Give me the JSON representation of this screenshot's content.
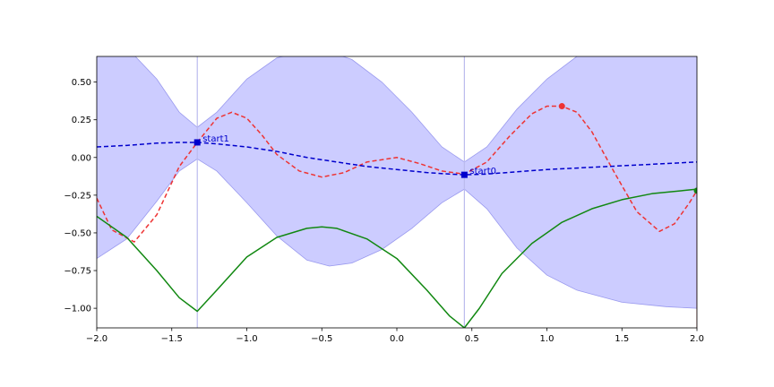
{
  "chart_data": {
    "type": "line",
    "title": "",
    "xlabel": "",
    "ylabel": "",
    "xlim": [
      -2.0,
      2.0
    ],
    "ylim": [
      -1.13,
      0.67
    ],
    "x_ticks": [
      {
        "value": -2.0,
        "label": "−2.0"
      },
      {
        "value": -1.5,
        "label": "−1.5"
      },
      {
        "value": -1.0,
        "label": "−1.0"
      },
      {
        "value": -0.5,
        "label": "−0.5"
      },
      {
        "value": 0.0,
        "label": "0.0"
      },
      {
        "value": 0.5,
        "label": "0.5"
      },
      {
        "value": 1.0,
        "label": "1.0"
      },
      {
        "value": 1.5,
        "label": "1.5"
      },
      {
        "value": 2.0,
        "label": "2.0"
      }
    ],
    "y_ticks": [
      {
        "value": 0.5,
        "label": "0.50"
      },
      {
        "value": 0.25,
        "label": "0.25"
      },
      {
        "value": 0.0,
        "label": "0.00"
      },
      {
        "value": -0.25,
        "label": "−0.25"
      },
      {
        "value": -0.5,
        "label": "−0.50"
      },
      {
        "value": -0.75,
        "label": "−0.75"
      },
      {
        "value": -1.0,
        "label": "−1.00"
      }
    ],
    "grid": false,
    "colors": {
      "band_fill": "#ccccff",
      "band_edge": "#9999ee",
      "target": "#ee3333",
      "mean": "#0000cc",
      "acquisition": "#118811",
      "sample_line": "#bbbbee"
    },
    "band": {
      "x": [
        -2.0,
        -1.8,
        -1.6,
        -1.45,
        -1.33,
        -1.2,
        -1.0,
        -0.8,
        -0.6,
        -0.45,
        -0.3,
        -0.1,
        0.1,
        0.3,
        0.45,
        0.6,
        0.8,
        1.0,
        1.2,
        1.5,
        1.8,
        2.0
      ],
      "upper": [
        0.82,
        0.73,
        0.52,
        0.3,
        0.2,
        0.3,
        0.52,
        0.66,
        0.71,
        0.7,
        0.65,
        0.5,
        0.3,
        0.07,
        -0.03,
        0.07,
        0.32,
        0.52,
        0.67,
        0.86,
        1.0,
        1.05
      ],
      "lower": [
        -0.67,
        -0.54,
        -0.29,
        -0.09,
        -0.01,
        -0.09,
        -0.3,
        -0.52,
        -0.68,
        -0.72,
        -0.7,
        -0.61,
        -0.47,
        -0.3,
        -0.21,
        -0.34,
        -0.6,
        -0.78,
        -0.88,
        -0.96,
        -0.99,
        -1.0
      ]
    },
    "series": [
      {
        "key": "target",
        "style": "dashed",
        "x": [
          -2.0,
          -1.9,
          -1.75,
          -1.6,
          -1.45,
          -1.33,
          -1.2,
          -1.1,
          -1.0,
          -0.9,
          -0.8,
          -0.65,
          -0.5,
          -0.35,
          -0.2,
          0.0,
          0.15,
          0.3,
          0.45,
          0.6,
          0.75,
          0.9,
          1.0,
          1.1,
          1.2,
          1.3,
          1.45,
          1.6,
          1.75,
          1.85,
          1.95,
          2.0
        ],
        "y": [
          -0.27,
          -0.48,
          -0.56,
          -0.38,
          -0.06,
          0.1,
          0.26,
          0.3,
          0.26,
          0.15,
          0.02,
          -0.09,
          -0.13,
          -0.1,
          -0.03,
          0.0,
          -0.04,
          -0.09,
          -0.11,
          -0.03,
          0.14,
          0.29,
          0.34,
          0.34,
          0.3,
          0.17,
          -0.1,
          -0.36,
          -0.49,
          -0.44,
          -0.3,
          -0.22
        ]
      },
      {
        "key": "mean",
        "style": "dashed",
        "x": [
          -2.0,
          -1.8,
          -1.6,
          -1.45,
          -1.33,
          -1.2,
          -1.0,
          -0.8,
          -0.6,
          -0.4,
          -0.2,
          0.0,
          0.2,
          0.35,
          0.45,
          0.6,
          0.8,
          1.0,
          1.2,
          1.4,
          1.6,
          1.8,
          2.0
        ],
        "y": [
          0.07,
          0.08,
          0.095,
          0.1,
          0.1,
          0.09,
          0.07,
          0.04,
          0.0,
          -0.03,
          -0.06,
          -0.08,
          -0.1,
          -0.11,
          -0.115,
          -0.11,
          -0.095,
          -0.08,
          -0.07,
          -0.06,
          -0.05,
          -0.04,
          -0.03
        ]
      },
      {
        "key": "acquisition",
        "style": "solid",
        "x": [
          -2.0,
          -1.8,
          -1.6,
          -1.45,
          -1.33,
          -1.2,
          -1.0,
          -0.8,
          -0.6,
          -0.5,
          -0.4,
          -0.2,
          0.0,
          0.2,
          0.35,
          0.45,
          0.55,
          0.7,
          0.9,
          1.1,
          1.3,
          1.5,
          1.7,
          1.9,
          2.0
        ],
        "y": [
          -0.39,
          -0.53,
          -0.75,
          -0.93,
          -1.02,
          -0.88,
          -0.66,
          -0.53,
          -0.47,
          -0.46,
          -0.47,
          -0.54,
          -0.67,
          -0.88,
          -1.05,
          -1.13,
          -1.0,
          -0.77,
          -0.57,
          -0.43,
          -0.34,
          -0.28,
          -0.24,
          -0.22,
          -0.21
        ]
      }
    ],
    "samples": [
      {
        "label": "start1",
        "x": -1.33,
        "y": 0.1
      },
      {
        "label": "start0",
        "x": 0.45,
        "y": -0.115
      }
    ],
    "target_max_point": {
      "x": 1.1,
      "y": 0.34
    },
    "acquisition_point": {
      "x": 2.0,
      "y": -0.22
    }
  }
}
